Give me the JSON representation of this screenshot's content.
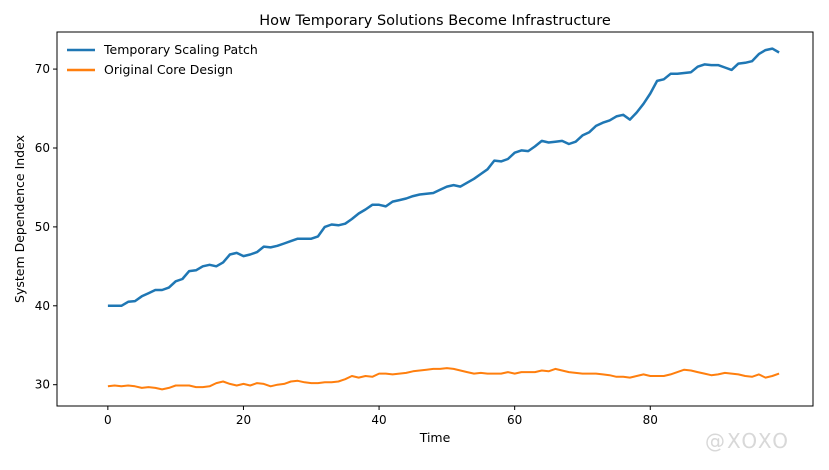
{
  "chart_data": {
    "type": "line",
    "title": "How Temporary Solutions Become Infrastructure",
    "xlabel": "Time",
    "ylabel": "System Dependence Index",
    "xlim": [
      -7.5,
      104
    ],
    "ylim": [
      27.3,
      74.7
    ],
    "xticks": [
      0,
      20,
      40,
      60,
      80
    ],
    "yticks": [
      30,
      40,
      50,
      60,
      70
    ],
    "grid": false,
    "legend_position": "top-left",
    "series": [
      {
        "name": "Temporary Scaling Patch",
        "color": "#1f77b4",
        "values": [
          40.0,
          40.0,
          40.0,
          40.5,
          40.6,
          41.2,
          41.6,
          42.0,
          42.0,
          42.3,
          43.1,
          43.4,
          44.4,
          44.5,
          45.0,
          45.2,
          45.0,
          45.5,
          46.5,
          46.7,
          46.3,
          46.5,
          46.8,
          47.5,
          47.4,
          47.6,
          47.9,
          48.2,
          48.5,
          48.5,
          48.5,
          48.8,
          50.0,
          50.3,
          50.2,
          50.4,
          51.0,
          51.7,
          52.2,
          52.8,
          52.8,
          52.6,
          53.2,
          53.4,
          53.6,
          53.9,
          54.1,
          54.2,
          54.3,
          54.7,
          55.1,
          55.3,
          55.1,
          55.6,
          56.1,
          56.7,
          57.3,
          58.4,
          58.3,
          58.6,
          59.4,
          59.7,
          59.6,
          60.2,
          60.9,
          60.7,
          60.8,
          60.9,
          60.5,
          60.8,
          61.6,
          62.0,
          62.8,
          63.2,
          63.5,
          64.0,
          64.2,
          63.6,
          64.5,
          65.6,
          66.9,
          68.5,
          68.7,
          69.4,
          69.4,
          69.5,
          69.6,
          70.3,
          70.6,
          70.5,
          70.5,
          70.2,
          69.9,
          70.7,
          70.8,
          71.0,
          71.9,
          72.4,
          72.6,
          72.1
        ]
      },
      {
        "name": "Original Core Design",
        "color": "#ff7f0e",
        "values": [
          29.8,
          29.9,
          29.8,
          29.9,
          29.8,
          29.6,
          29.7,
          29.6,
          29.4,
          29.6,
          29.9,
          29.9,
          29.9,
          29.7,
          29.7,
          29.8,
          30.2,
          30.4,
          30.1,
          29.9,
          30.1,
          29.9,
          30.2,
          30.1,
          29.8,
          30.0,
          30.1,
          30.4,
          30.5,
          30.3,
          30.2,
          30.2,
          30.3,
          30.3,
          30.4,
          30.7,
          31.1,
          30.9,
          31.1,
          31.0,
          31.4,
          31.4,
          31.3,
          31.4,
          31.5,
          31.7,
          31.8,
          31.9,
          32.0,
          32.0,
          32.1,
          32.0,
          31.8,
          31.6,
          31.4,
          31.5,
          31.4,
          31.4,
          31.4,
          31.6,
          31.4,
          31.6,
          31.6,
          31.6,
          31.8,
          31.7,
          32.0,
          31.8,
          31.6,
          31.5,
          31.4,
          31.4,
          31.4,
          31.3,
          31.2,
          31.0,
          31.0,
          30.9,
          31.1,
          31.3,
          31.1,
          31.1,
          31.1,
          31.3,
          31.6,
          31.9,
          31.8,
          31.6,
          31.4,
          31.2,
          31.3,
          31.5,
          31.4,
          31.3,
          31.1,
          31.0,
          31.3,
          30.9,
          31.1,
          31.4
        ]
      }
    ]
  },
  "watermark": "@XOXO"
}
